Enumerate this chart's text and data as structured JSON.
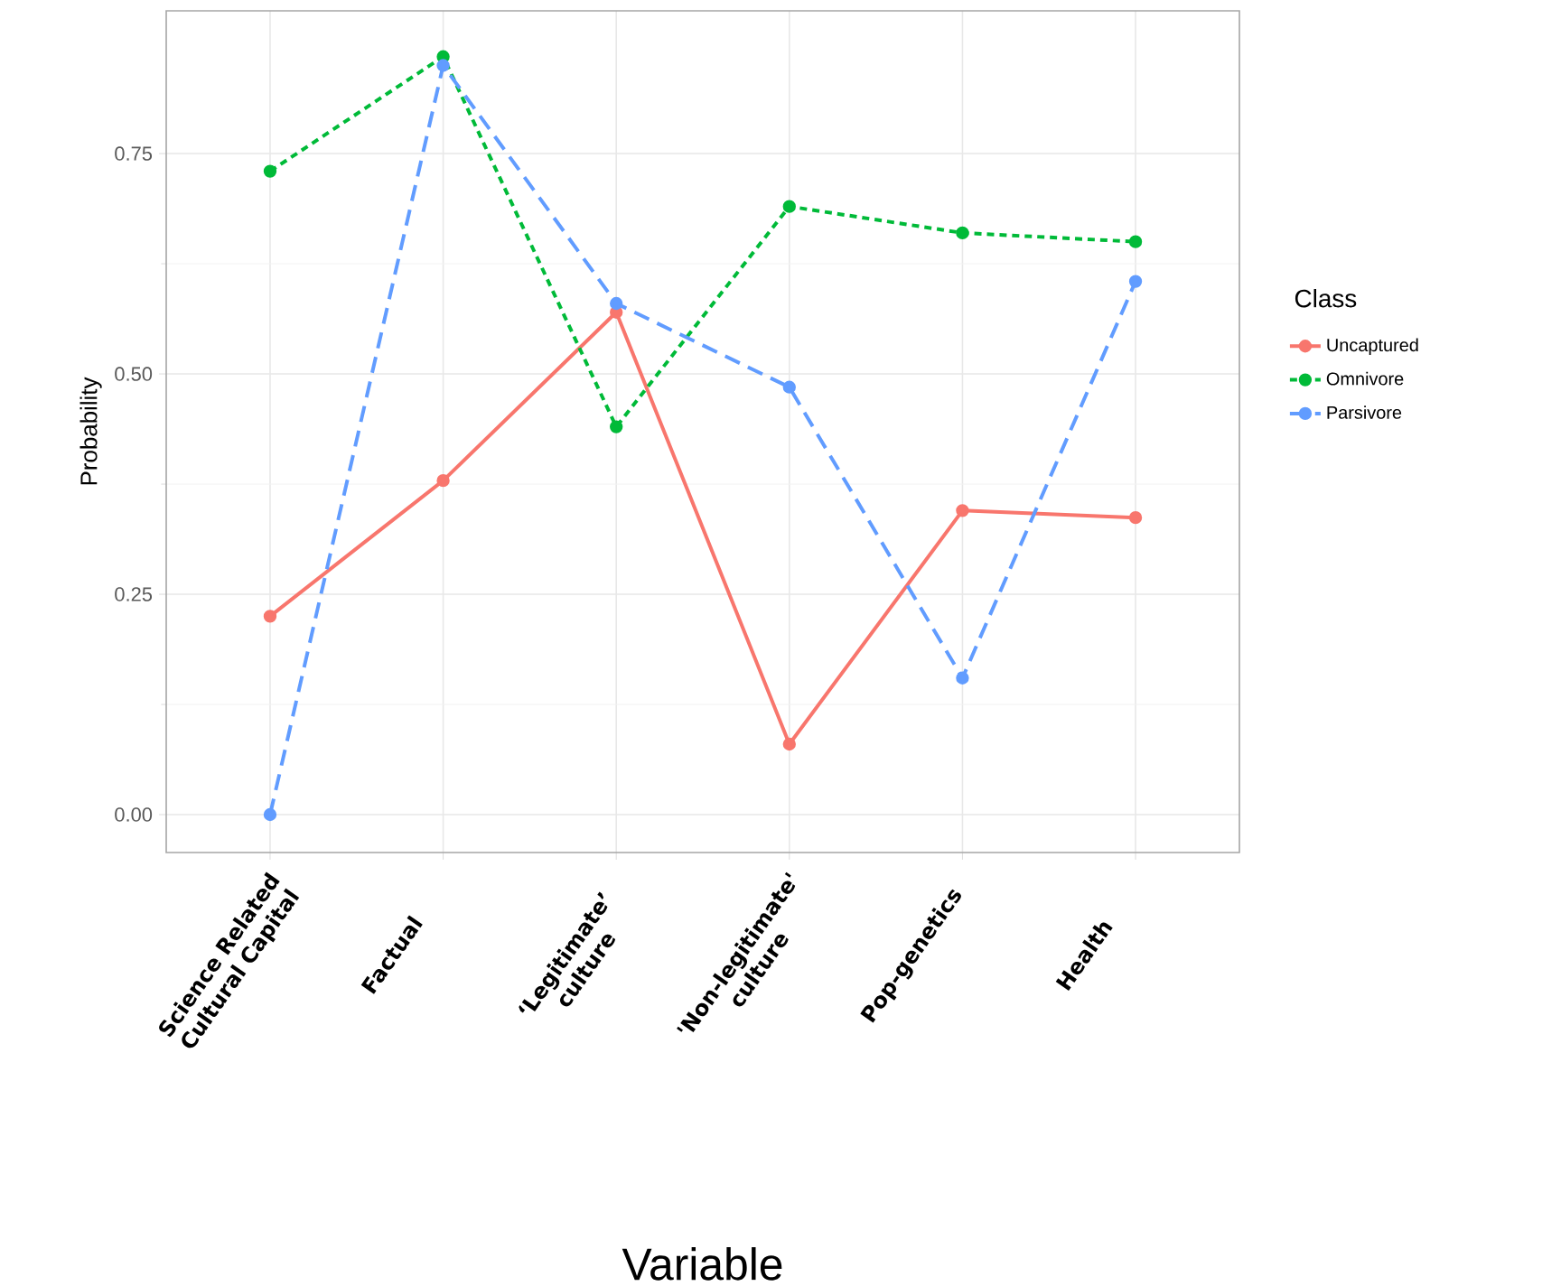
{
  "chart_data": {
    "type": "line",
    "xlabel": "Variable",
    "ylabel": "Probability",
    "legend_title": "Class",
    "categories": [
      "Science Related Cultural Capital",
      "Factual",
      "‘Legitimate’ culture",
      "'Non-legitimate' culture",
      "Pop-genetics",
      "Health"
    ],
    "series": [
      {
        "name": "Uncaptured",
        "color": "#f8766d",
        "line_style": "solid",
        "values": [
          0.225,
          0.379,
          0.57,
          0.08,
          0.345,
          0.337
        ]
      },
      {
        "name": "Omnivore",
        "color": "#00ba38",
        "line_style": "dotted",
        "values": [
          0.73,
          0.86,
          0.44,
          0.69,
          0.66,
          0.65
        ]
      },
      {
        "name": "Parsivore",
        "color": "#619cff",
        "line_style": "dashed",
        "values": [
          0.0,
          0.85,
          0.58,
          0.485,
          0.155,
          0.605
        ]
      }
    ],
    "ylim": [
      -0.043,
      0.912
    ],
    "yticks": [
      {
        "value": 0,
        "label": "0.00"
      },
      {
        "value": 0.25,
        "label": "0.25"
      },
      {
        "value": 0.5,
        "label": "0.50"
      },
      {
        "value": 0.75,
        "label": "0.75"
      }
    ],
    "grid": true,
    "legend": "right",
    "marker": "circle"
  }
}
